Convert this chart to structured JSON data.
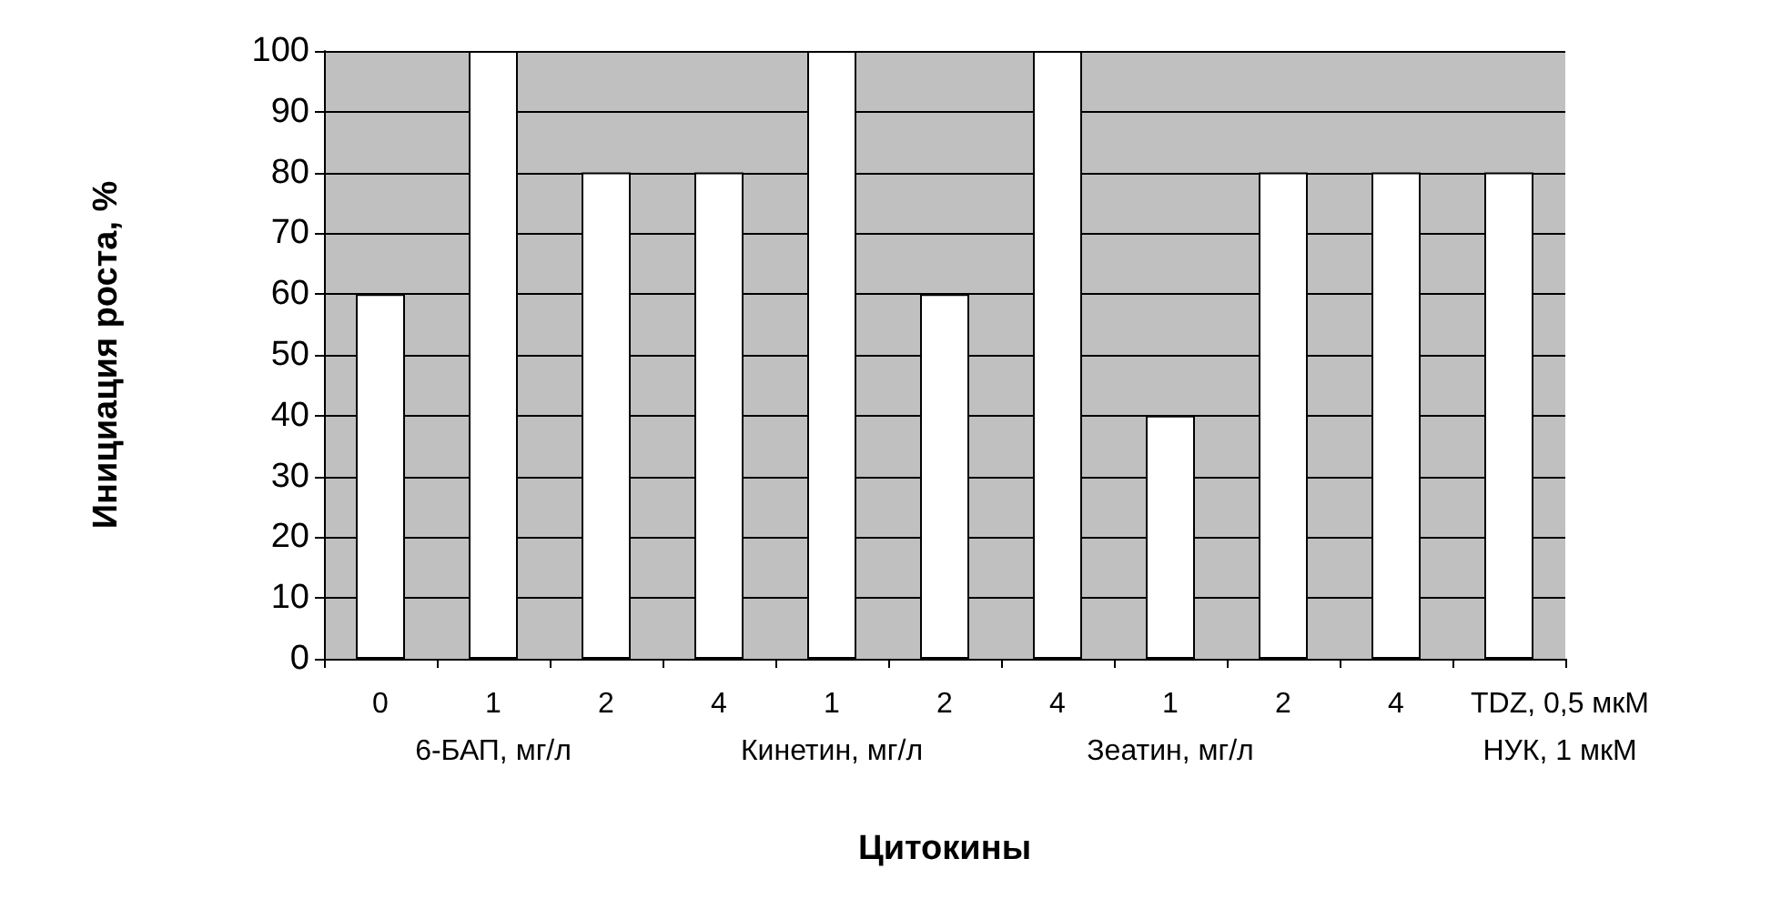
{
  "chart_data": {
    "type": "bar",
    "xlabel": "Цитокины",
    "ylabel": "Инициация роста, %",
    "categories": [
      "0",
      "1\n6-БАП, мг/л",
      "2",
      "4",
      "1\nКинетин, мг/л",
      "2",
      "4",
      "1\nЗеатин, мг/л",
      "2",
      "4",
      "TDZ, 0,5 мкМ\nНУК, 1 мкМ"
    ],
    "values": [
      60,
      100,
      80,
      80,
      100,
      60,
      100,
      40,
      80,
      80,
      80
    ],
    "color": "#ffffff",
    "ylim": [
      0,
      100
    ],
    "yticks": [
      0,
      10,
      20,
      30,
      40,
      50,
      60,
      70,
      80,
      90,
      100
    ],
    "grid": "y"
  }
}
